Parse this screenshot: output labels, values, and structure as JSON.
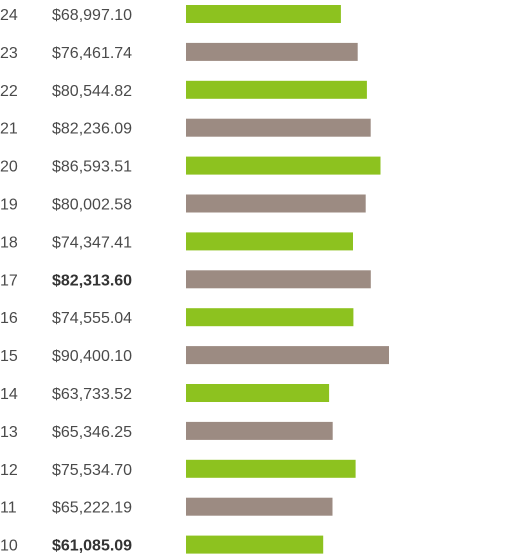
{
  "chart_data": {
    "type": "bar",
    "orientation": "horizontal",
    "grid": false,
    "legend": "none",
    "colors": {
      "green": "#8dc21f",
      "taupe": "#9c8b82"
    },
    "categories": [
      "24",
      "23",
      "22",
      "21",
      "20",
      "19",
      "18",
      "17",
      "16",
      "15",
      "14",
      "13",
      "12",
      "11",
      "10"
    ],
    "values": [
      68997.1,
      76461.74,
      80544.82,
      82236.09,
      86593.51,
      80002.58,
      74347.41,
      82313.6,
      74555.04,
      90400.1,
      63733.52,
      65346.25,
      75534.7,
      65222.19,
      61085.09
    ],
    "value_labels": [
      "$68,997.10",
      "$76,461.74",
      "$80,544.82",
      "$82,236.09",
      "$86,593.51",
      "$80,002.58",
      "$74,347.41",
      "$82,313.60",
      "$74,555.04",
      "$90,400.10",
      "$63,733.52",
      "$65,346.25",
      "$75,534.70",
      "$65,222.19",
      "$61,085.09"
    ],
    "bold_labels": [
      false,
      false,
      false,
      false,
      false,
      false,
      false,
      true,
      false,
      false,
      false,
      false,
      false,
      false,
      true
    ],
    "bar_colors": [
      "green",
      "taupe",
      "green",
      "taupe",
      "green",
      "taupe",
      "green",
      "taupe",
      "green",
      "taupe",
      "green",
      "taupe",
      "green",
      "taupe",
      "green"
    ]
  }
}
